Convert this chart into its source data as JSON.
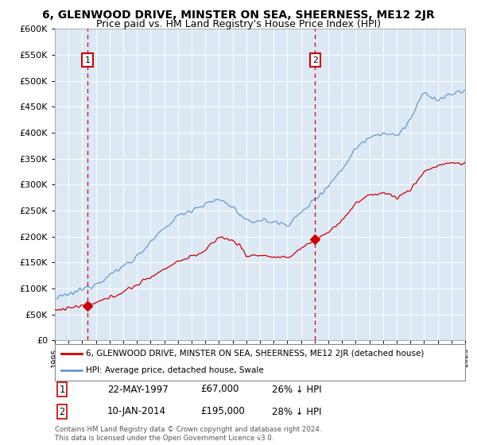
{
  "title": "6, GLENWOOD DRIVE, MINSTER ON SEA, SHEERNESS, ME12 2JR",
  "subtitle": "Price paid vs. HM Land Registry's House Price Index (HPI)",
  "legend_line1": "6, GLENWOOD DRIVE, MINSTER ON SEA, SHEERNESS, ME12 2JR (detached house)",
  "legend_line2": "HPI: Average price, detached house, Swale",
  "point1_date": "22-MAY-1997",
  "point1_price": "£67,000",
  "point1_hpi": "26% ↓ HPI",
  "point1_year": 1997.38,
  "point1_value": 67000,
  "point2_date": "10-JAN-2014",
  "point2_price": "£195,000",
  "point2_hpi": "28% ↓ HPI",
  "point2_year": 2014.03,
  "point2_value": 195000,
  "xmin": 1995,
  "xmax": 2025,
  "ymin": 0,
  "ymax": 600000,
  "bg_color": "#dce9f5",
  "red_color": "#cc0000",
  "blue_color": "#6699cc",
  "copyright_text": "Contains HM Land Registry data © Crown copyright and database right 2024.\nThis data is licensed under the Open Government Licence v3.0."
}
